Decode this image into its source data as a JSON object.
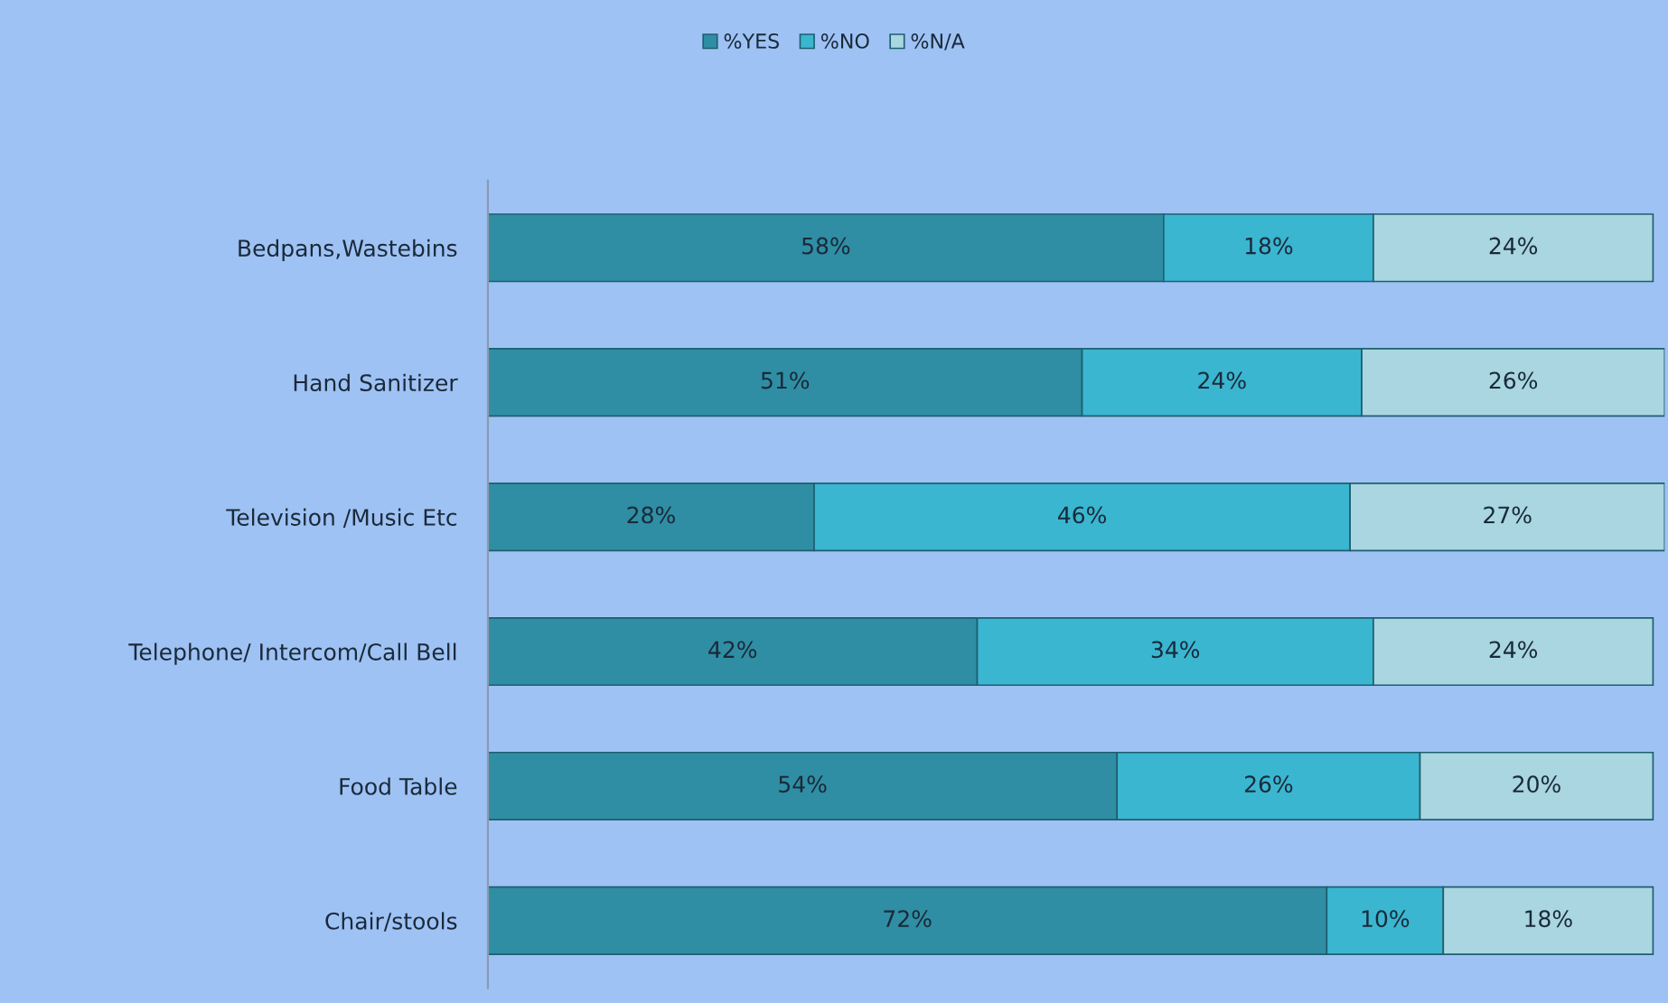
{
  "chart_data": {
    "type": "bar",
    "orientation": "horizontal",
    "stacked": true,
    "categories": [
      "Bedpans,Wastebins",
      "Hand Sanitizer",
      "Television /Music Etc",
      "Telephone/ Intercom/Call Bell",
      "Food Table",
      "Chair/stools"
    ],
    "series": [
      {
        "name": "%YES",
        "color": "#2f8ea3",
        "values": [
          58,
          51,
          28,
          42,
          54,
          72
        ],
        "value_labels": [
          "58%",
          "51%",
          "28%",
          "42%",
          "54%",
          "72%"
        ]
      },
      {
        "name": "%NO",
        "color": "#3ab6d0",
        "values": [
          18,
          24,
          46,
          34,
          26,
          10
        ],
        "value_labels": [
          "18%",
          "24%",
          "46%",
          "34%",
          "26%",
          "10%"
        ]
      },
      {
        "name": "%N/A",
        "color": "#a9d6e0",
        "values": [
          24,
          26,
          27,
          24,
          20,
          18
        ],
        "value_labels": [
          "24%",
          "26%",
          "27%",
          "24%",
          "20%",
          "18%"
        ]
      }
    ],
    "xlim": [
      0,
      101
    ],
    "tick_labels": "y",
    "legend": "top"
  }
}
